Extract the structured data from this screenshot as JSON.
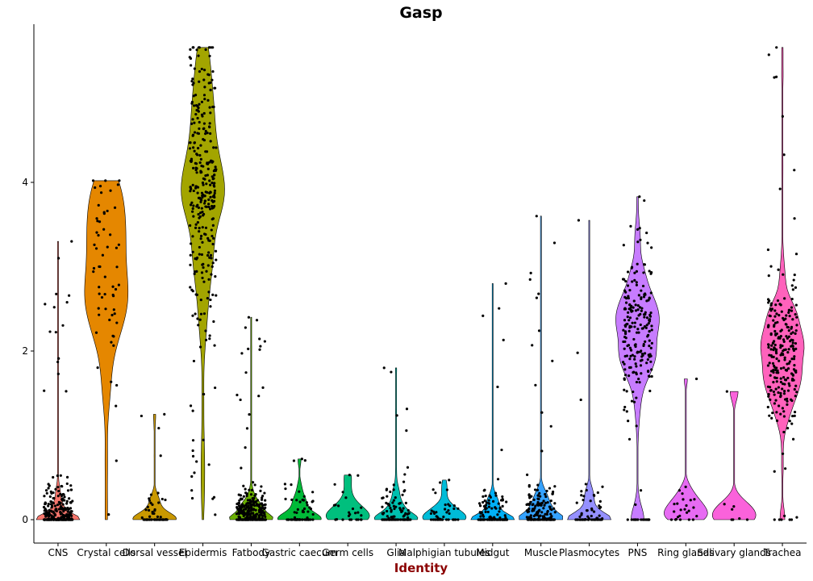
{
  "chart_data": {
    "type": "violin",
    "title": "Gasp",
    "xlabel": "Identity",
    "ylabel": "",
    "ylim": [
      -0.25,
      5.65
    ],
    "yticks": [
      0,
      2,
      4
    ],
    "y_tick_labels": [
      "0",
      "2",
      "4"
    ],
    "grid": false,
    "legend": "none",
    "categories": [
      "CNS",
      "Crystal cells",
      "Dorsal vessel",
      "Epidermis",
      "Fatbody",
      "Gastric caecum",
      "Germ cells",
      "Glia",
      "Malphigian tubules",
      "Midgut",
      "Muscle",
      "Plasmocytes",
      "PNS",
      "Ring glands",
      "Salivary glands",
      "Trachea"
    ],
    "series": [
      {
        "category": "CNS",
        "color": "#F8766D",
        "max": 3.3,
        "median": 0.0,
        "n_points": 320,
        "zero_fraction": 0.45,
        "jitter": 0.6
      },
      {
        "category": "Crystal cells",
        "color": "#E58700",
        "max": 4.02,
        "median": 3.1,
        "n_points": 60,
        "zero_fraction": 0.0,
        "jitter": 0.55
      },
      {
        "category": "Dorsal vessel",
        "color": "#C99800",
        "max": 1.25,
        "median": 0.05,
        "n_points": 60,
        "zero_fraction": 0.55,
        "jitter": 0.55
      },
      {
        "category": "Epidermis",
        "color": "#A3A500",
        "max": 5.6,
        "median": 3.9,
        "n_points": 320,
        "zero_fraction": 0.0,
        "jitter": 0.55
      },
      {
        "category": "Fatbody",
        "color": "#6BB100",
        "max": 2.4,
        "median": 0.1,
        "n_points": 300,
        "zero_fraction": 0.35,
        "jitter": 0.6
      },
      {
        "category": "Gastric caecum",
        "color": "#00BA38",
        "max": 0.72,
        "median": 0.15,
        "n_points": 70,
        "zero_fraction": 0.5,
        "jitter": 0.6
      },
      {
        "category": "Germ cells",
        "color": "#00BF7D",
        "max": 0.53,
        "median": 0.2,
        "n_points": 25,
        "zero_fraction": 0.3,
        "jitter": 0.6
      },
      {
        "category": "Glia",
        "color": "#00C0AF",
        "max": 1.8,
        "median": 0.1,
        "n_points": 110,
        "zero_fraction": 0.45,
        "jitter": 0.6
      },
      {
        "category": "Malphigian tubules",
        "color": "#00BCD8",
        "max": 0.47,
        "median": 0.05,
        "n_points": 45,
        "zero_fraction": 0.45,
        "jitter": 0.6
      },
      {
        "category": "Midgut",
        "color": "#00B0F6",
        "max": 2.8,
        "median": 0.0,
        "n_points": 140,
        "zero_fraction": 0.55,
        "jitter": 0.6
      },
      {
        "category": "Muscle",
        "color": "#35A2FF",
        "max": 3.6,
        "median": 0.25,
        "n_points": 180,
        "zero_fraction": 0.3,
        "jitter": 0.6
      },
      {
        "category": "Plasmocytes",
        "color": "#9590FF",
        "max": 3.55,
        "median": 0.1,
        "n_points": 70,
        "zero_fraction": 0.5,
        "jitter": 0.6
      },
      {
        "category": "PNS",
        "color": "#C77CFF",
        "max": 3.83,
        "median": 2.2,
        "n_points": 230,
        "zero_fraction": 0.08,
        "jitter": 0.6
      },
      {
        "category": "Ring glands",
        "color": "#E76BF3",
        "max": 1.67,
        "median": 0.25,
        "n_points": 25,
        "zero_fraction": 0.2,
        "jitter": 0.6
      },
      {
        "category": "Salivary glands",
        "color": "#FA62DB",
        "max": 1.52,
        "median": 0.2,
        "n_points": 8,
        "zero_fraction": 0.4,
        "jitter": 0.6
      },
      {
        "category": "Trachea",
        "color": "#FF62BC",
        "max": 5.6,
        "median": 2.0,
        "n_points": 250,
        "zero_fraction": 0.02,
        "jitter": 0.6
      }
    ]
  }
}
